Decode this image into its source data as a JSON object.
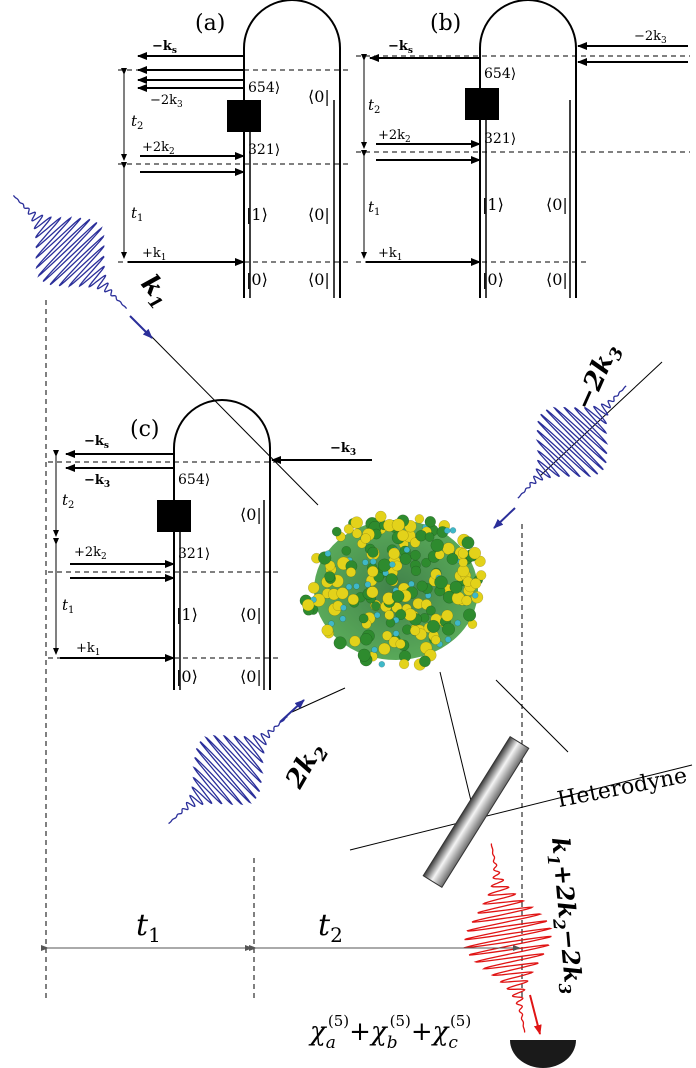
{
  "colors": {
    "ink": "#000000",
    "pulse_blue": "#2b2f9a",
    "signal_red": "#e01414",
    "sample_green": "#2e8b2e",
    "sample_yellow": "#e3d21a",
    "sample_cyan": "#3fb8c8"
  },
  "panels": [
    {
      "id": "a",
      "label": "(a)",
      "ks": "−k",
      "ks_sub": "s",
      "k3": "−2k",
      "k3_sub": "3",
      "k2": "+2k",
      "k2_sub": "2",
      "k1": "+k",
      "k1_sub": "1",
      "t2": "t",
      "t2_sub": "2",
      "t1": "t",
      "t1_sub": "1",
      "ket654": "654⟩",
      "ket321": "321⟩",
      "ket1": "|1⟩",
      "ket0": "|0⟩",
      "bra0_top": "⟨0|",
      "bra0_mid": "⟨0|",
      "bra0_bot": "⟨0|"
    },
    {
      "id": "b",
      "label": "(b)",
      "ks": "−k",
      "ks_sub": "s",
      "k3": "−2k",
      "k3_sub": "3",
      "k2": "+2k",
      "k2_sub": "2",
      "k1": "+k",
      "k1_sub": "1",
      "t2": "t",
      "t2_sub": "2",
      "t1": "t",
      "t1_sub": "1",
      "ket654": "654⟩",
      "ket321": "321⟩",
      "ket1": "|1⟩",
      "ket0": "|0⟩",
      "bra0_top": "⟨0|",
      "bra0_mid": "⟨0|",
      "bra0_bot": "⟨0|"
    },
    {
      "id": "c",
      "label": "(c)",
      "ks": "−k",
      "ks_sub": "s",
      "k3": "−k",
      "k3_sub": "3",
      "k3_right": "−k",
      "k3_right_sub": "3",
      "k2": "+2k",
      "k2_sub": "2",
      "k1": "+k",
      "k1_sub": "1",
      "t2": "t",
      "t2_sub": "2",
      "t1": "t",
      "t1_sub": "1",
      "ket654": "654⟩",
      "ket321": "321⟩",
      "ket1": "|1⟩",
      "ket0": "|0⟩",
      "bra0_top": "⟨0|",
      "bra0_mid": "⟨0|",
      "bra0_bot": "⟨0|"
    }
  ],
  "pulses": {
    "k1": {
      "main": "k",
      "sub": "1"
    },
    "k2": {
      "main": "2k",
      "sub": "2"
    },
    "k3": {
      "main": "−2k",
      "sub": "3"
    },
    "signal": {
      "parts": [
        "k",
        "1",
        "+2k",
        "2",
        "−2k",
        "3"
      ]
    }
  },
  "heterodyne": "Heterodyne",
  "delays": {
    "t1": {
      "main": "t",
      "sub": "1"
    },
    "t2": {
      "main": "t",
      "sub": "2"
    }
  },
  "susceptibility": {
    "a": {
      "chi": "χ",
      "sub": "a",
      "sup": "(5)"
    },
    "b": {
      "chi": "χ",
      "sub": "b",
      "sup": "(5)"
    },
    "c": {
      "chi": "χ",
      "sub": "c",
      "sup": "(5)"
    },
    "plus": "+"
  }
}
